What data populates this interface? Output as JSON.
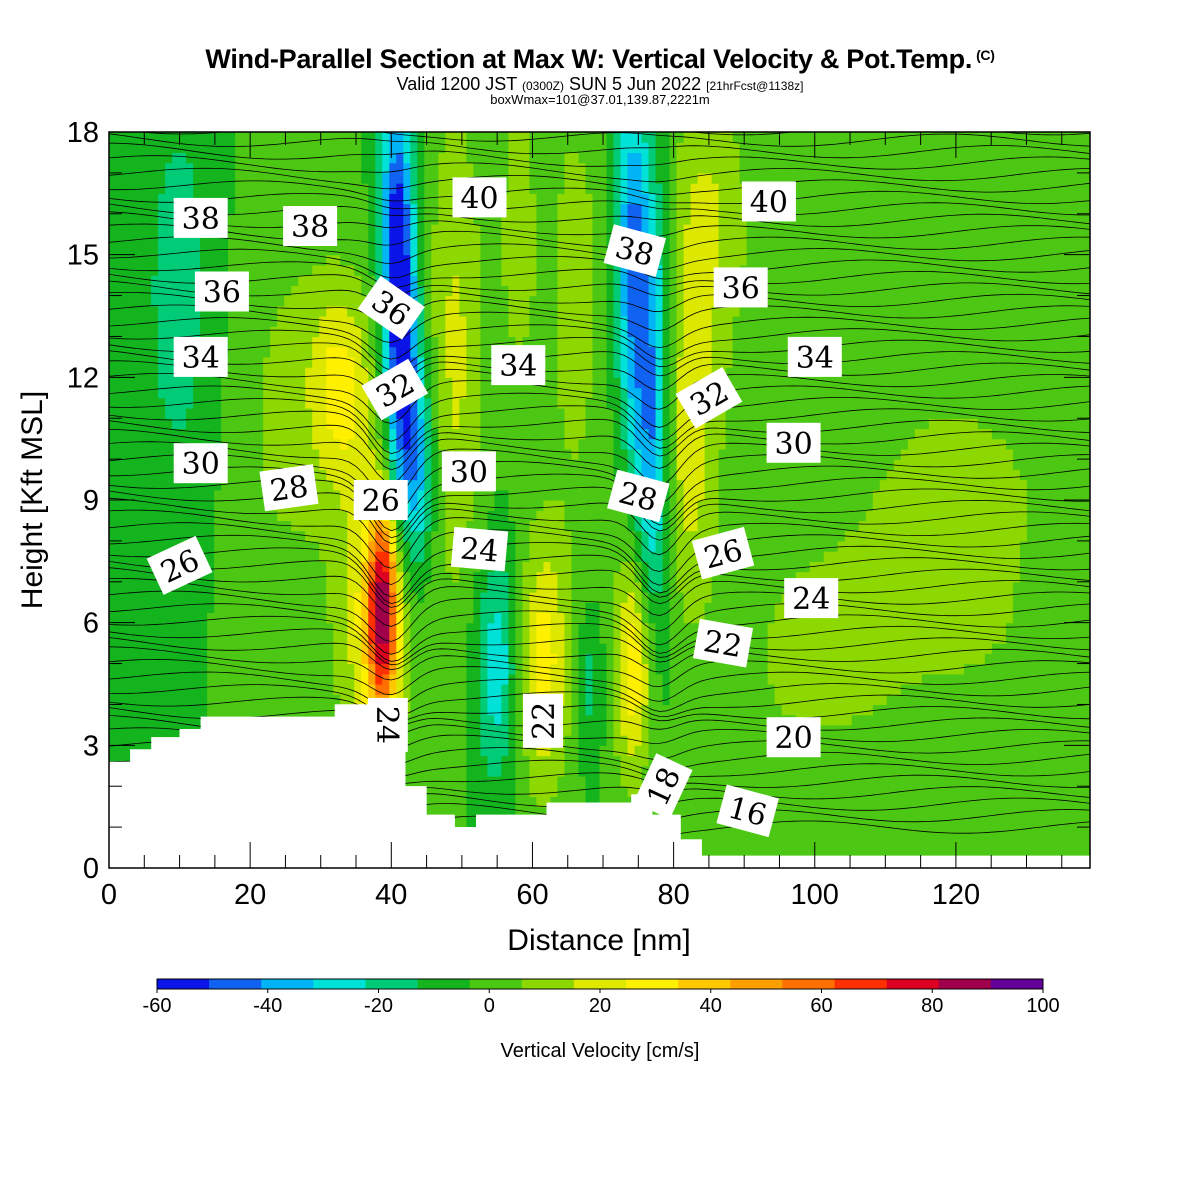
{
  "header": {
    "title": "Wind-Parallel Section at Max W: Vertical Velocity & Pot.Temp.",
    "title_mark": "(C)",
    "valid_prefix": "Valid 1200 JST",
    "valid_utc": "(0300Z)",
    "valid_date": "SUN 5 Jun 2022",
    "forecast": "[21hrFcst@1138z]",
    "boxinfo": "boxWmax=101@37.01,139.87,2221m"
  },
  "chart_data": {
    "type": "heatmap",
    "xlabel": "Distance [nm]",
    "ylabel": "Height [Kft MSL]",
    "xlim": [
      0,
      139
    ],
    "ylim": [
      0,
      18
    ],
    "x_ticks": [
      0,
      20,
      40,
      60,
      80,
      100,
      120
    ],
    "y_ticks": [
      0,
      3,
      6,
      9,
      12,
      15,
      18
    ],
    "colorbar": {
      "label": "Vertical Velocity [cm/s]",
      "levels": [
        -60,
        -50,
        -40,
        -30,
        -20,
        -10,
        0,
        10,
        20,
        30,
        40,
        50,
        60,
        70,
        80,
        90,
        100
      ],
      "tick_labels": [
        "-60",
        "-40",
        "-20",
        "0",
        "20",
        "40",
        "60",
        "80",
        "100"
      ],
      "colors": [
        "#0a14e6",
        "#1062f0",
        "#00b4f5",
        "#00e2d8",
        "#00cc78",
        "#14b41e",
        "#4cc814",
        "#8cd800",
        "#dce800",
        "#fff000",
        "#ffc800",
        "#ffa000",
        "#ff7000",
        "#ff3000",
        "#dc0022",
        "#a0004a",
        "#64009a"
      ]
    },
    "w_field": {
      "background_value": 0,
      "features": [
        {
          "x": 37.5,
          "y": 6.0,
          "sx": 3.6,
          "sy": 2.6,
          "w": 30
        },
        {
          "x": 38.8,
          "y": 6.3,
          "sx": 1.5,
          "sy": 1.8,
          "w": 75
        },
        {
          "x": 33,
          "y": 11.8,
          "sx": 3.2,
          "sy": 1.8,
          "w": 30
        },
        {
          "x": 41.5,
          "y": 12.5,
          "sx": 1.7,
          "sy": 3.0,
          "w": -52
        },
        {
          "x": 44,
          "y": 9.8,
          "sx": 1.8,
          "sy": 1.8,
          "w": -30
        },
        {
          "x": 40.5,
          "y": 16.0,
          "sx": 1.6,
          "sy": 2.5,
          "w": -35
        },
        {
          "x": 49,
          "y": 12.5,
          "sx": 3.0,
          "sy": 4.5,
          "w": 22
        },
        {
          "x": 55,
          "y": 5.0,
          "sx": 2.3,
          "sy": 2.0,
          "w": -28
        },
        {
          "x": 61.5,
          "y": 5.0,
          "sx": 2.6,
          "sy": 2.2,
          "w": 35
        },
        {
          "x": 68,
          "y": 4.5,
          "sx": 1.4,
          "sy": 1.2,
          "w": -15
        },
        {
          "x": 74.5,
          "y": 5.0,
          "sx": 2.0,
          "sy": 2.0,
          "w": 40
        },
        {
          "x": 77,
          "y": 11.0,
          "sx": 1.8,
          "sy": 4.0,
          "w": -45
        },
        {
          "x": 74,
          "y": 15.0,
          "sx": 1.6,
          "sy": 3.0,
          "w": -40
        },
        {
          "x": 82,
          "y": 10.5,
          "sx": 3.0,
          "sy": 3.0,
          "w": 25
        },
        {
          "x": 85,
          "y": 16.0,
          "sx": 4.0,
          "sy": 2.5,
          "w": 20
        },
        {
          "x": 66,
          "y": 14.0,
          "sx": 3.0,
          "sy": 4.0,
          "w": 15
        },
        {
          "x": 58,
          "y": 15.5,
          "sx": 2.0,
          "sy": 3.0,
          "w": 15
        },
        {
          "x": 10,
          "y": 14.0,
          "sx": 4.0,
          "sy": 4.0,
          "w": -15
        },
        {
          "x": 25,
          "y": 11.0,
          "sx": 6.0,
          "sy": 4.0,
          "w": 12
        },
        {
          "x": 120,
          "y": 8.0,
          "sx": 18.0,
          "sy": 5.0,
          "w": 12
        },
        {
          "x": 98,
          "y": 5.0,
          "sx": 8.0,
          "sy": 2.0,
          "w": 8
        },
        {
          "x": 133,
          "y": 6.5,
          "sx": 2.0,
          "sy": 1.0,
          "w": -6
        }
      ]
    },
    "terrain_kft": [
      [
        0,
        2.6
      ],
      [
        3,
        2.6
      ],
      [
        3,
        2.9
      ],
      [
        6,
        2.9
      ],
      [
        6,
        3.2
      ],
      [
        10,
        3.2
      ],
      [
        10,
        3.4
      ],
      [
        13,
        3.4
      ],
      [
        13,
        3.7
      ],
      [
        32,
        3.7
      ],
      [
        32,
        4.0
      ],
      [
        42,
        4.0
      ],
      [
        42,
        2.0
      ],
      [
        45,
        2.0
      ],
      [
        45,
        1.3
      ],
      [
        49,
        1.3
      ],
      [
        49,
        1.0
      ],
      [
        52,
        1.0
      ],
      [
        52,
        1.3
      ],
      [
        62,
        1.3
      ],
      [
        62,
        1.6
      ],
      [
        74,
        1.6
      ],
      [
        74,
        1.8
      ],
      [
        77,
        1.8
      ],
      [
        77,
        1.3
      ],
      [
        81,
        1.3
      ],
      [
        81,
        0.7
      ],
      [
        84,
        0.7
      ],
      [
        84,
        0.3
      ],
      [
        139,
        0.3
      ]
    ],
    "theta_labels": [
      {
        "x": 13,
        "y": 15.9,
        "text": "38",
        "angle": 0
      },
      {
        "x": 28.5,
        "y": 15.7,
        "text": "38",
        "angle": 0
      },
      {
        "x": 52.5,
        "y": 16.4,
        "text": "40",
        "angle": 0
      },
      {
        "x": 93.5,
        "y": 16.3,
        "text": "40",
        "angle": 0
      },
      {
        "x": 16,
        "y": 14.1,
        "text": "36",
        "angle": 0
      },
      {
        "x": 40,
        "y": 13.7,
        "text": "36",
        "angle": 35
      },
      {
        "x": 74.5,
        "y": 15.1,
        "text": "38",
        "angle": 15
      },
      {
        "x": 89.5,
        "y": 14.2,
        "text": "36",
        "angle": 0
      },
      {
        "x": 13,
        "y": 12.5,
        "text": "34",
        "angle": 0
      },
      {
        "x": 58,
        "y": 12.3,
        "text": "34",
        "angle": 0
      },
      {
        "x": 100,
        "y": 12.5,
        "text": "34",
        "angle": 0
      },
      {
        "x": 40.5,
        "y": 11.7,
        "text": "32",
        "angle": -30
      },
      {
        "x": 85,
        "y": 11.5,
        "text": "32",
        "angle": -30
      },
      {
        "x": 13,
        "y": 9.9,
        "text": "30",
        "angle": 0
      },
      {
        "x": 51,
        "y": 9.7,
        "text": "30",
        "angle": 0
      },
      {
        "x": 97,
        "y": 10.4,
        "text": "30",
        "angle": 0
      },
      {
        "x": 25.5,
        "y": 9.3,
        "text": "28",
        "angle": -8
      },
      {
        "x": 75,
        "y": 9.1,
        "text": "28",
        "angle": 15
      },
      {
        "x": 38.5,
        "y": 9.0,
        "text": "26",
        "angle": 0
      },
      {
        "x": 10,
        "y": 7.4,
        "text": "26",
        "angle": -25
      },
      {
        "x": 87,
        "y": 7.7,
        "text": "26",
        "angle": -15
      },
      {
        "x": 52.5,
        "y": 7.8,
        "text": "24",
        "angle": 5
      },
      {
        "x": 99.5,
        "y": 6.6,
        "text": "24",
        "angle": 0
      },
      {
        "x": 87,
        "y": 5.5,
        "text": "22",
        "angle": 10
      },
      {
        "x": 39.5,
        "y": 3.5,
        "text": "24",
        "angle": 90
      },
      {
        "x": 61.5,
        "y": 3.6,
        "text": "22",
        "angle": -90
      },
      {
        "x": 97,
        "y": 3.2,
        "text": "20",
        "angle": 0
      },
      {
        "x": 78.5,
        "y": 2.0,
        "text": "18",
        "angle": -65
      },
      {
        "x": 90.5,
        "y": 1.4,
        "text": "16",
        "angle": 15
      }
    ]
  }
}
